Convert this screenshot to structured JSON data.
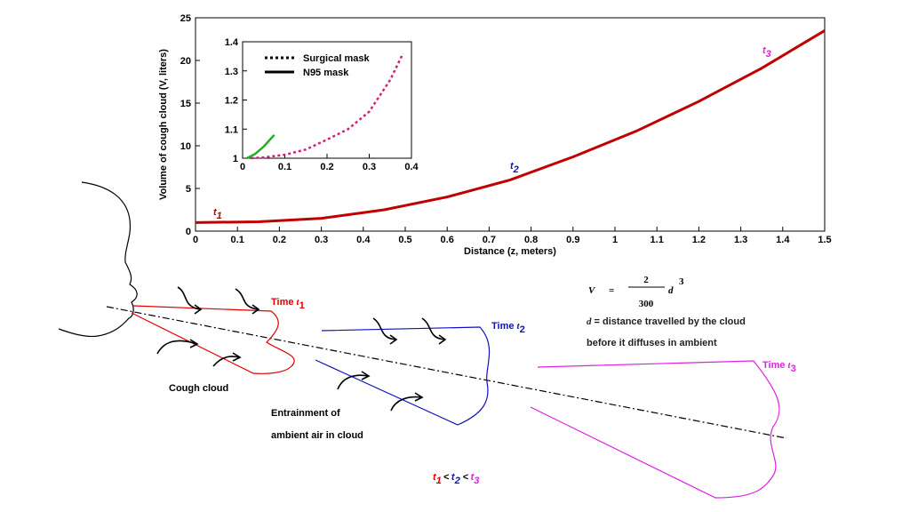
{
  "chart_data": [
    {
      "type": "line",
      "xlabel": "Distance (z, meters)",
      "ylabel": "Volume of cough cloud (V, liters)",
      "x": [
        0,
        0.15,
        0.3,
        0.45,
        0.6,
        0.75,
        0.9,
        1.05,
        1.2,
        1.35,
        1.5
      ],
      "series": [
        {
          "color": "#c00000",
          "values": [
            1,
            1.1,
            1.5,
            2.5,
            4,
            6,
            8.7,
            11.7,
            15.2,
            19.1,
            23.5
          ]
        }
      ],
      "xlim": [
        0,
        1.5
      ],
      "xticks": [
        0,
        0.1,
        0.2,
        0.3,
        0.4,
        0.5,
        0.6,
        0.7,
        0.8,
        0.9,
        1,
        1.1,
        1.2,
        1.3,
        1.4,
        1.5
      ],
      "ylim": [
        0,
        25
      ],
      "yticks": [
        0,
        5,
        10,
        15,
        20,
        25
      ],
      "annotations": [
        {
          "text": "t",
          "sub": "1",
          "color": "#c00000"
        },
        {
          "text": "t",
          "sub": "2",
          "color": "#1010c0"
        },
        {
          "text": "t",
          "sub": "3",
          "color": "#e020e0"
        }
      ]
    },
    {
      "type": "line",
      "series": [
        {
          "name": "Surgical mask",
          "color": "#d0207a",
          "dash": true,
          "x": [
            0.02,
            0.05,
            0.1,
            0.15,
            0.2,
            0.25,
            0.3,
            0.35,
            0.38
          ],
          "values": [
            1,
            1.003,
            1.012,
            1.03,
            1.064,
            1.1,
            1.16,
            1.27,
            1.36
          ]
        },
        {
          "name": "N95 mask",
          "color": "#20b020",
          "dash": false,
          "x": [
            0.01,
            0.03,
            0.05,
            0.075
          ],
          "values": [
            1,
            1.015,
            1.04,
            1.08
          ]
        }
      ],
      "xlim": [
        0,
        0.4
      ],
      "xticks": [
        0,
        0.1,
        0.2,
        0.3,
        0.4
      ],
      "ylim": [
        1,
        1.4
      ],
      "yticks": [
        1,
        1.1,
        1.2,
        1.3,
        1.4
      ]
    }
  ],
  "diagram": {
    "equation": {
      "lhs": "V",
      "numerator": "2",
      "denominator": "300",
      "var": "d",
      "exp": "3"
    },
    "definition": [
      [
        {
          "var": "d"
        },
        {
          "text": " = distance travelled by the cloud"
        }
      ],
      [
        {
          "text": "before it diffuses in ambient"
        }
      ]
    ],
    "labels": [
      {
        "color": "#e00000",
        "parts": [
          {
            "text": "Time "
          },
          {
            "var": "t"
          },
          {
            "sub": "1"
          }
        ]
      },
      {
        "color": "#1010c0",
        "parts": [
          {
            "text": "Time "
          },
          {
            "var": "t"
          },
          {
            "sub": "2"
          }
        ]
      },
      {
        "color": "#e020e0",
        "parts": [
          {
            "text": "Time "
          },
          {
            "var": "t"
          },
          {
            "sub": "3"
          }
        ]
      },
      {
        "color": "#000000",
        "parts": [
          {
            "text": "Cough cloud"
          }
        ]
      },
      {
        "color": "#000000",
        "parts": [
          {
            "text": "Entrainment of"
          }
        ]
      },
      {
        "color": "#000000",
        "parts": [
          {
            "text": "ambient air in cloud"
          }
        ]
      }
    ],
    "order": [
      {
        "color": "#e00000",
        "parts": [
          {
            "text": "t"
          },
          {
            "sub": "1"
          }
        ]
      },
      {
        "color": "#000000",
        "parts": [
          {
            "text": " < "
          }
        ]
      },
      {
        "color": "#1010c0",
        "parts": [
          {
            "text": "t"
          },
          {
            "sub": "2"
          }
        ]
      },
      {
        "color": "#000000",
        "parts": [
          {
            "text": " < "
          }
        ]
      },
      {
        "color": "#e020e0",
        "parts": [
          {
            "text": "t"
          },
          {
            "sub": "3"
          }
        ]
      }
    ]
  }
}
